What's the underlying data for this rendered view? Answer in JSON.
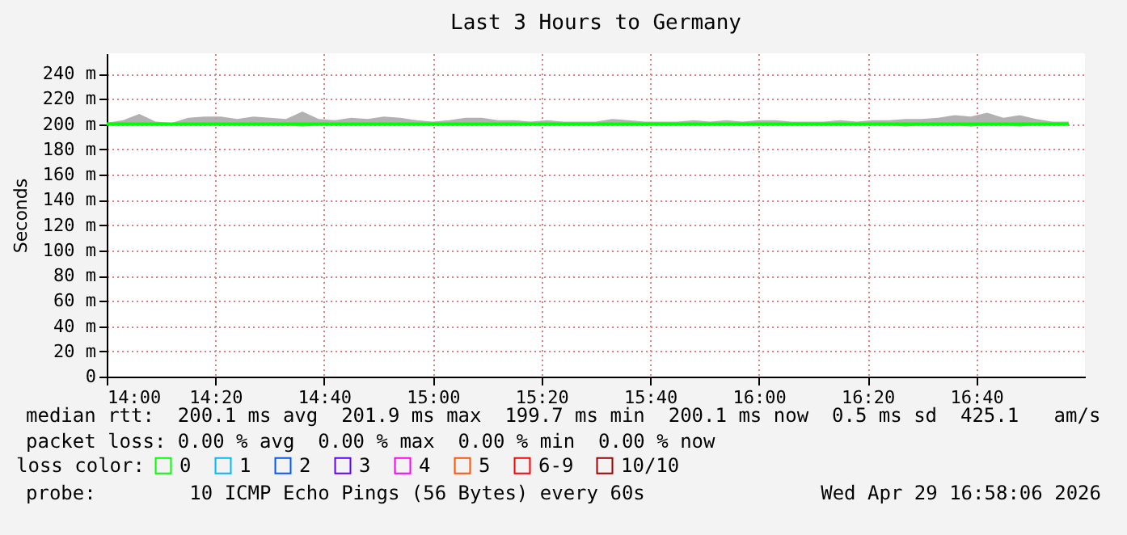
{
  "chart_data": {
    "type": "line",
    "title": "Last 3 Hours to Germany",
    "ylabel": "Seconds",
    "legend_title": "loss color:",
    "legend": "bottom left",
    "grid": true,
    "marker": "none",
    "line_style": "solid",
    "xlim": [
      14,
      17
    ],
    "xticks": [
      {
        "value": 14,
        "label": "14:00"
      },
      {
        "value": 14.3333,
        "label": "14:20"
      },
      {
        "value": 14.6667,
        "label": "14:40"
      },
      {
        "value": 15,
        "label": "15:00"
      },
      {
        "value": 15.3333,
        "label": "15:20"
      },
      {
        "value": 15.6667,
        "label": "15:40"
      },
      {
        "value": 16,
        "label": "16:00"
      },
      {
        "value": 16.3333,
        "label": "16:20"
      },
      {
        "value": 16.6667,
        "label": "16:40"
      }
    ],
    "ylim": [
      0,
      256
    ],
    "yticks": [
      0,
      {
        "value": 20,
        "label": "20 m"
      },
      {
        "value": 40,
        "label": "40 m"
      },
      {
        "value": 60,
        "label": "60 m"
      },
      {
        "value": 80,
        "label": "80 m"
      },
      {
        "value": 100,
        "label": "100 m"
      },
      {
        "value": 120,
        "label": "120 m"
      },
      {
        "value": 140,
        "label": "140 m"
      },
      {
        "value": 160,
        "label": "160 m"
      },
      {
        "value": 180,
        "label": "180 m"
      },
      {
        "value": 200,
        "label": "200 m"
      },
      {
        "value": 220,
        "label": "220 m"
      },
      {
        "value": 240,
        "label": "240 m"
      }
    ],
    "x": [
      14,
      14.05,
      14.1,
      14.15,
      14.2,
      14.25,
      14.3,
      14.35,
      14.4,
      14.45,
      14.5,
      14.55,
      14.6,
      14.65,
      14.7,
      14.75,
      14.8,
      14.85,
      14.9,
      14.95,
      15,
      15.05,
      15.1,
      15.15,
      15.2,
      15.25,
      15.3,
      15.35,
      15.4,
      15.45,
      15.5,
      15.55,
      15.6,
      15.65,
      15.7,
      15.75,
      15.8,
      15.85,
      15.9,
      15.95,
      16,
      16.05,
      16.1,
      16.15,
      16.2,
      16.25,
      16.3,
      16.35,
      16.4,
      16.45,
      16.5,
      16.55,
      16.6,
      16.65,
      16.7,
      16.75,
      16.8,
      16.85,
      16.9,
      16.95
    ],
    "series": [
      {
        "name": "0",
        "color": "#00ff00",
        "values": [
          200,
          200,
          200,
          200,
          200,
          200,
          200,
          200,
          200,
          200,
          200,
          200,
          200,
          200,
          200,
          200,
          200,
          200,
          200,
          200,
          200,
          200,
          200,
          200,
          200,
          200,
          200,
          200,
          200,
          200,
          200,
          200,
          200,
          200,
          200,
          200,
          200,
          200,
          200,
          200,
          200,
          200,
          200,
          200,
          200,
          200,
          200,
          200,
          200,
          200,
          200,
          200,
          200,
          200,
          200,
          200,
          200,
          200,
          200,
          200
        ],
        "lower": [
          199,
          199,
          199,
          199,
          199,
          199,
          199,
          199,
          199,
          199,
          199,
          199,
          198,
          199,
          199,
          199,
          199,
          199,
          199,
          199,
          199,
          199,
          199,
          199,
          199,
          199,
          199,
          199,
          199,
          199,
          199,
          199,
          199,
          199,
          199,
          199,
          199,
          199,
          199,
          199,
          199,
          199,
          199,
          199,
          199,
          199,
          199,
          199,
          199,
          198,
          199,
          199,
          199,
          198,
          199,
          199,
          198,
          199,
          199,
          199
        ],
        "upper": [
          201,
          203,
          208,
          202,
          201,
          205,
          206,
          206,
          204,
          206,
          205,
          204,
          210,
          204,
          203,
          205,
          204,
          206,
          205,
          203,
          202,
          203,
          205,
          205,
          203,
          203,
          202,
          203,
          202,
          202,
          202,
          204,
          203,
          202,
          202,
          202,
          203,
          202,
          203,
          202,
          203,
          203,
          202,
          202,
          202,
          203,
          202,
          203,
          203,
          204,
          204,
          205,
          207,
          206,
          209,
          205,
          207,
          204,
          202,
          202
        ]
      },
      {
        "name": "1",
        "color": "#00b8ff",
        "values": [
          null,
          null,
          null,
          null,
          null,
          null,
          null,
          null,
          null,
          null,
          null,
          null,
          null,
          null,
          null,
          null,
          null,
          null,
          null,
          null,
          null,
          null,
          null,
          null,
          null,
          null,
          null,
          null,
          null,
          null,
          null,
          null,
          null,
          null,
          null,
          null,
          null,
          null,
          null,
          null,
          null,
          null,
          null,
          null,
          null,
          null,
          null,
          null,
          null,
          null,
          null,
          null,
          null,
          null,
          null,
          null,
          null,
          null,
          null,
          null
        ]
      },
      {
        "name": "2",
        "color": "#0059ff",
        "values": [
          null,
          null,
          null,
          null,
          null,
          null,
          null,
          null,
          null,
          null,
          null,
          null,
          null,
          null,
          null,
          null,
          null,
          null,
          null,
          null,
          null,
          null,
          null,
          null,
          null,
          null,
          null,
          null,
          null,
          null,
          null,
          null,
          null,
          null,
          null,
          null,
          null,
          null,
          null,
          null,
          null,
          null,
          null,
          null,
          null,
          null,
          null,
          null,
          null,
          null,
          null,
          null,
          null,
          null,
          null,
          null,
          null,
          null,
          null,
          null
        ]
      },
      {
        "name": "3",
        "color": "#5e00ff",
        "values": [
          null,
          null,
          null,
          null,
          null,
          null,
          null,
          null,
          null,
          null,
          null,
          null,
          null,
          null,
          null,
          null,
          null,
          null,
          null,
          null,
          null,
          null,
          null,
          null,
          null,
          null,
          null,
          null,
          null,
          null,
          null,
          null,
          null,
          null,
          null,
          null,
          null,
          null,
          null,
          null,
          null,
          null,
          null,
          null,
          null,
          null,
          null,
          null,
          null,
          null,
          null,
          null,
          null,
          null,
          null,
          null,
          null,
          null,
          null,
          null
        ]
      },
      {
        "name": "4",
        "color": "#ff00ff",
        "values": [
          null,
          null,
          null,
          null,
          null,
          null,
          null,
          null,
          null,
          null,
          null,
          null,
          null,
          null,
          null,
          null,
          null,
          null,
          null,
          null,
          null,
          null,
          null,
          null,
          null,
          null,
          null,
          null,
          null,
          null,
          null,
          null,
          null,
          null,
          null,
          null,
          null,
          null,
          null,
          null,
          null,
          null,
          null,
          null,
          null,
          null,
          null,
          null,
          null,
          null,
          null,
          null,
          null,
          null,
          null,
          null,
          null,
          null,
          null,
          null
        ]
      },
      {
        "name": "5",
        "color": "#ff5500",
        "values": [
          null,
          null,
          null,
          null,
          null,
          null,
          null,
          null,
          null,
          null,
          null,
          null,
          null,
          null,
          null,
          null,
          null,
          null,
          null,
          null,
          null,
          null,
          null,
          null,
          null,
          null,
          null,
          null,
          null,
          null,
          null,
          null,
          null,
          null,
          null,
          null,
          null,
          null,
          null,
          null,
          null,
          null,
          null,
          null,
          null,
          null,
          null,
          null,
          null,
          null,
          null,
          null,
          null,
          null,
          null,
          null,
          null,
          null,
          null,
          null
        ]
      },
      {
        "name": "6-9",
        "color": "#ff0000",
        "values": [
          null,
          null,
          null,
          null,
          null,
          null,
          null,
          null,
          null,
          null,
          null,
          null,
          null,
          null,
          null,
          null,
          null,
          null,
          null,
          null,
          null,
          null,
          null,
          null,
          null,
          null,
          null,
          null,
          null,
          null,
          null,
          null,
          null,
          null,
          null,
          null,
          null,
          null,
          null,
          null,
          null,
          null,
          null,
          null,
          null,
          null,
          null,
          null,
          null,
          null,
          null,
          null,
          null,
          null,
          null,
          null,
          null,
          null,
          null,
          null
        ]
      },
      {
        "name": "10/10",
        "color": "#a00000",
        "values": [
          null,
          null,
          null,
          null,
          null,
          null,
          null,
          null,
          null,
          null,
          null,
          null,
          null,
          null,
          null,
          null,
          null,
          null,
          null,
          null,
          null,
          null,
          null,
          null,
          null,
          null,
          null,
          null,
          null,
          null,
          null,
          null,
          null,
          null,
          null,
          null,
          null,
          null,
          null,
          null,
          null,
          null,
          null,
          null,
          null,
          null,
          null,
          null,
          null,
          null,
          null,
          null,
          null,
          null,
          null,
          null,
          null,
          null,
          null,
          null
        ]
      }
    ],
    "annotations": [
      "median rtt:  200.1 ms avg  201.9 ms max  199.7 ms min  200.1 ms now  0.5 ms sd  425.1   am/s",
      "packet loss: 0.00 % avg  0.00 % max  0.00 % min  0.00 % now",
      "probe:        10 ICMP Echo Pings (56 Bytes) every 60s",
      "Wed Apr 29 16:58:06 2026"
    ]
  }
}
